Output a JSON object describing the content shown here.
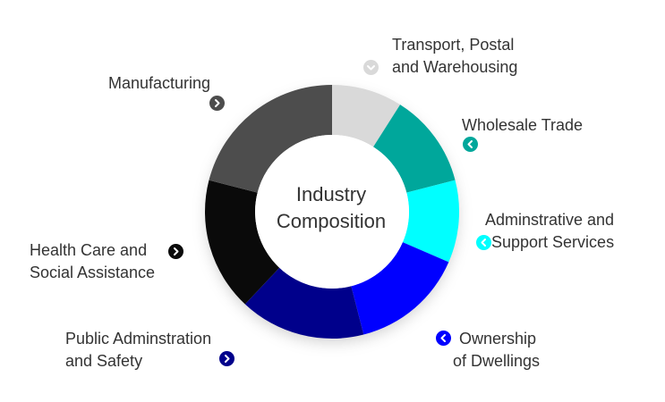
{
  "chart_data": {
    "type": "donut",
    "title": "Industry Composition",
    "title_lines": [
      "Industry",
      "Composition"
    ],
    "categories": [
      "Transport, Postal and Warehousing",
      "Wholesale Trade",
      "Adminstrative and Support Services",
      "Ownership of Dwellings",
      "Public Adminstration and Safety",
      "Health Care and Social Assistance",
      "Manufacturing"
    ],
    "values": [
      9,
      12,
      10.5,
      14.5,
      16,
      17,
      21
    ],
    "colors": [
      "#d9d9d9",
      "#00a79b",
      "#00ffff",
      "#0000ff",
      "#00008b",
      "#0a0a0a",
      "#4d4d4d"
    ],
    "legend_labels": [
      {
        "lines": [
          "Transport, Postal",
          "and Warehousing"
        ],
        "icon": "chevron-down-icon",
        "color": "#d9d9d9"
      },
      {
        "lines": [
          "Wholesale Trade"
        ],
        "icon": "chevron-left-icon",
        "color": "#00a79b"
      },
      {
        "lines": [
          "Adminstrative and",
          "Support Services"
        ],
        "icon": "chevron-left-icon",
        "color": "#00ffff"
      },
      {
        "lines": [
          "Ownership",
          "of Dwellings"
        ],
        "icon": "chevron-left-icon",
        "color": "#0000ff"
      },
      {
        "lines": [
          "Public Adminstration",
          "and Safety"
        ],
        "icon": "chevron-right-icon",
        "color": "#00008b"
      },
      {
        "lines": [
          "Health Care and",
          "Social Assistance"
        ],
        "icon": "chevron-right-icon",
        "color": "#0a0a0a"
      },
      {
        "lines": [
          "Manufacturing"
        ],
        "icon": "chevron-right-icon",
        "color": "#4d4d4d"
      }
    ]
  }
}
